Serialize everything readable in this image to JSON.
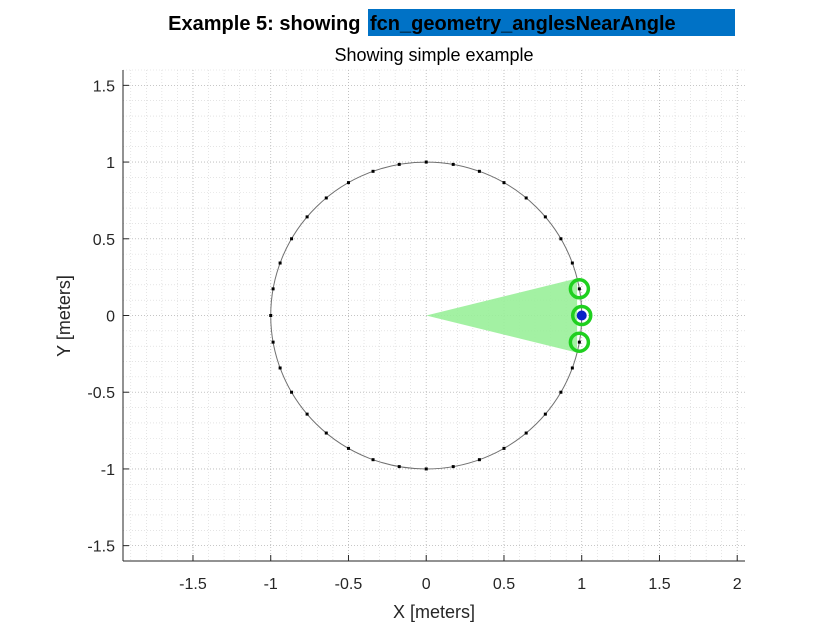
{
  "chart_data": {
    "type": "scatter",
    "title_prefix": "Example 5: showing ",
    "title_highlight": "fcn_geometry_anglesNearAngle",
    "subtitle": "Showing simple example",
    "xlabel": "X [meters]",
    "ylabel": "Y [meters]",
    "xlim": [
      -1.95,
      2.05
    ],
    "ylim": [
      -1.6,
      1.6
    ],
    "xticks": [
      -1.5,
      -1,
      -0.5,
      0,
      0.5,
      1,
      1.5,
      2
    ],
    "yticks": [
      -1.5,
      -1,
      -0.5,
      0,
      0.5,
      1,
      1.5
    ],
    "xtick_labels": [
      "-1.5",
      "-1",
      "-0.5",
      "0",
      "0.5",
      "1",
      "1.5",
      "2"
    ],
    "ytick_labels": [
      "-1.5",
      "-1",
      "-0.5",
      "0",
      "0.5",
      "1",
      "1.5"
    ],
    "grid": true,
    "minor_grid": true,
    "circle": {
      "center": [
        0,
        0
      ],
      "radius": 1
    },
    "points_angle_step_deg": 10,
    "wedge": {
      "apex": [
        0,
        0
      ],
      "start_deg": -14,
      "end_deg": 14
    },
    "query_point": {
      "x": 1,
      "y": 0
    },
    "near_points": [
      {
        "x": 0.985,
        "y": 0.174
      },
      {
        "x": 1,
        "y": 0
      },
      {
        "x": 0.985,
        "y": -0.174
      }
    ],
    "colors": {
      "title_highlight_bg": "#0072c6",
      "title_highlight_text": "#ffffff",
      "wedge": "#99f099",
      "near_ring": "#1fd01f",
      "query_point": "#0a22c8",
      "circle": "#707070",
      "points": "#000000"
    }
  }
}
